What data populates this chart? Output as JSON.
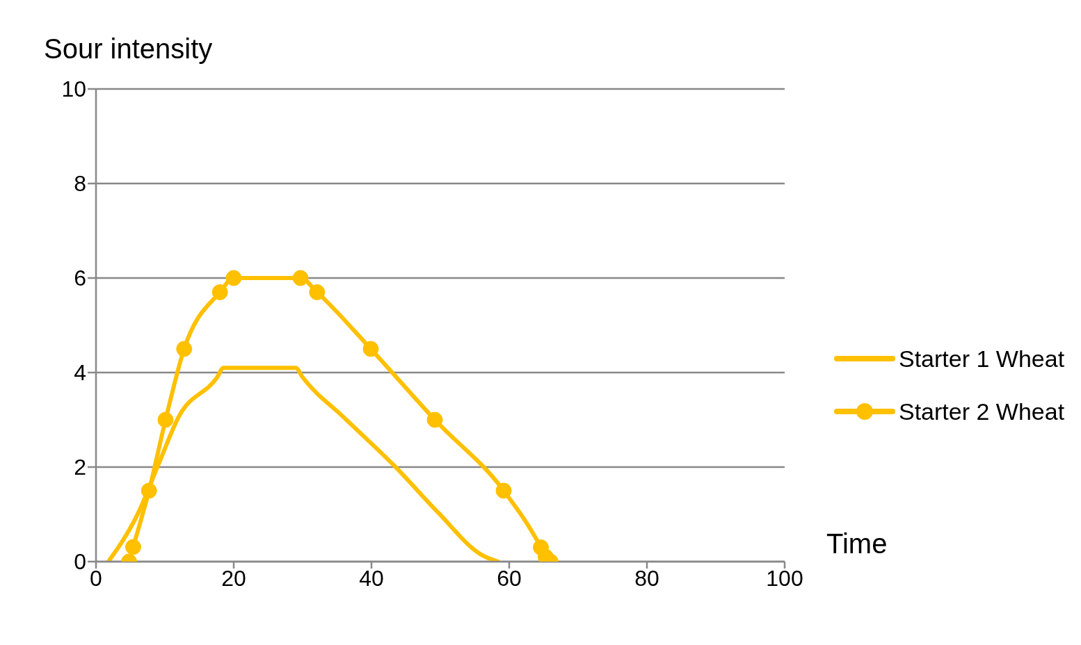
{
  "chart_data": {
    "type": "line",
    "ylabel": "Sour intensity",
    "xlabel": "Time",
    "xlim": [
      0,
      100
    ],
    "xticks": [
      0,
      20,
      40,
      60,
      80,
      100
    ],
    "ylim": [
      0,
      10
    ],
    "yticks": [
      0,
      2,
      4,
      6,
      8,
      10
    ],
    "grid": "y",
    "legend": "right",
    "line_style": "solid",
    "series": [
      {
        "name": "Starter 1 Wheat",
        "color": "#ffc000",
        "marker": "none",
        "x": [
          1.8,
          6.2,
          9,
          12,
          17.6,
          18.5,
          29,
          30,
          36,
          43.3,
          49.8,
          55.9,
          58.4
        ],
        "values": [
          0,
          1.05,
          2.03,
          3.06,
          3.9,
          4.1,
          4.1,
          3.9,
          3.05,
          2.03,
          1.02,
          0.15,
          0
        ]
      },
      {
        "name": "Starter 2 Wheat",
        "color": "#ffc000",
        "marker": "circle",
        "x": [
          4.8,
          5.4,
          7.7,
          10.1,
          12.8,
          18,
          20,
          29.7,
          32.1,
          39.9,
          49.2,
          59.2,
          64.6,
          65.3,
          66
        ],
        "values": [
          0,
          0.31,
          1.5,
          3,
          4.5,
          5.7,
          6,
          6,
          5.7,
          4.5,
          3,
          1.5,
          0.3,
          0.1,
          0
        ]
      }
    ]
  }
}
